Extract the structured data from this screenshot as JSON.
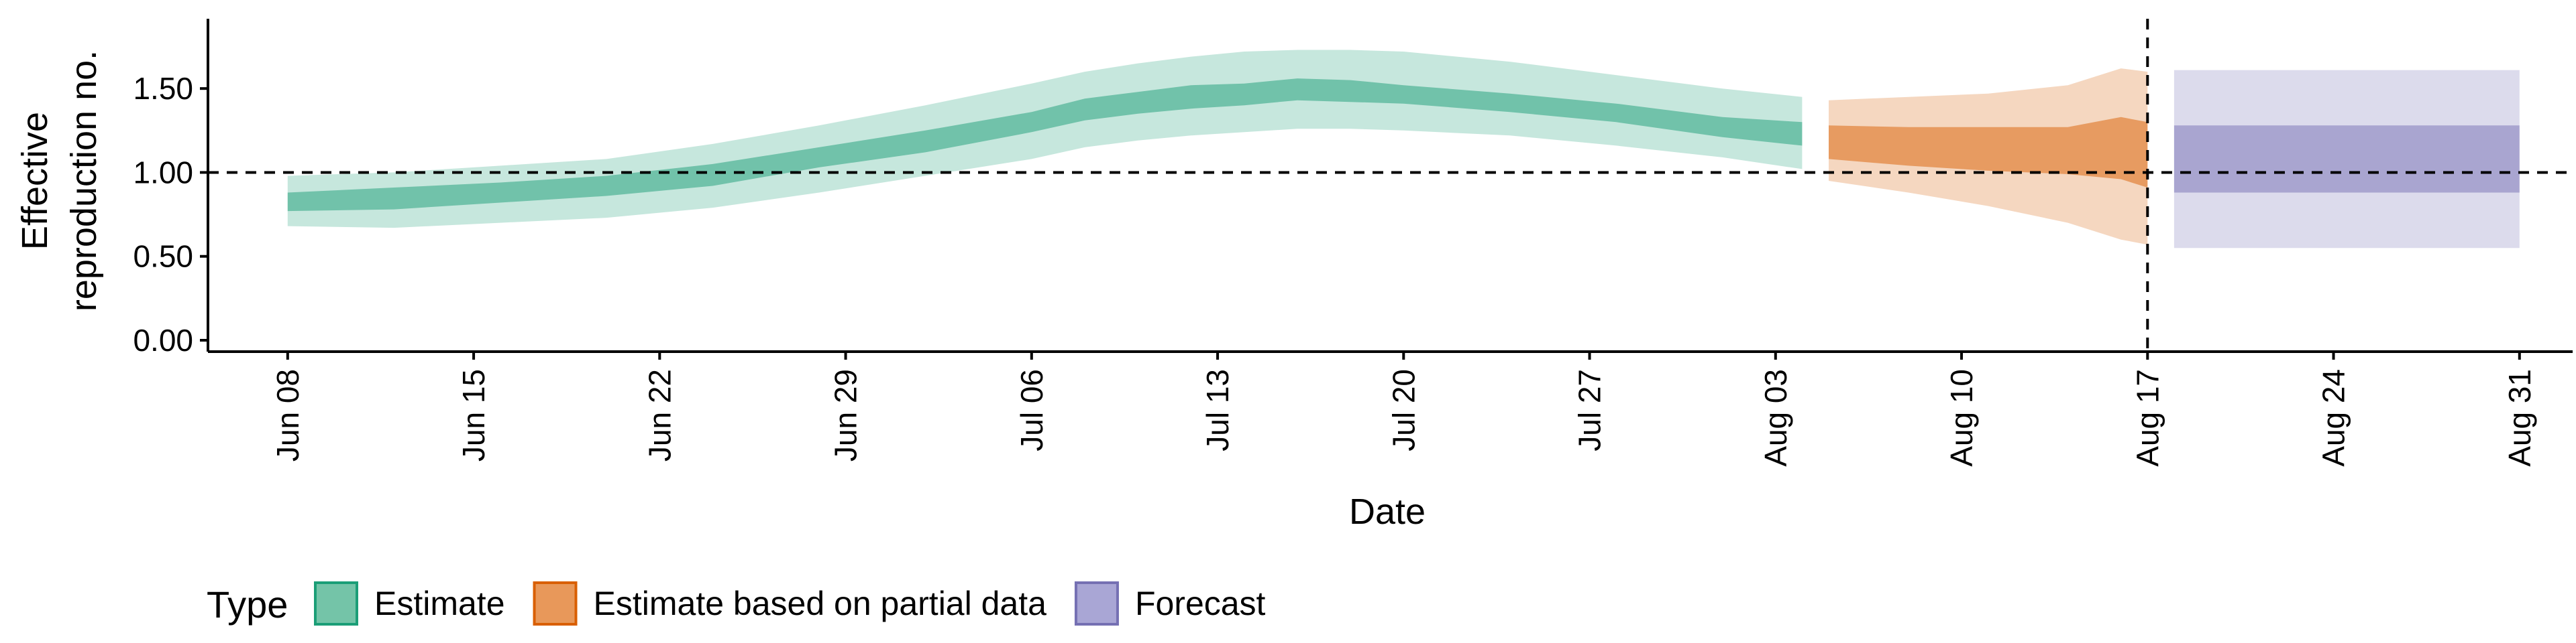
{
  "chart_data": {
    "type": "area",
    "ylabel_line1": "Effective",
    "ylabel_line2": "reproduction no.",
    "xlabel": "Date",
    "ylim": [
      0,
      1.8
    ],
    "yticks": [
      0.0,
      0.5,
      1.0,
      1.5
    ],
    "ytick_labels": [
      "0.00",
      "0.50",
      "1.00",
      "1.50"
    ],
    "xlim": [
      "2020-06-05",
      "2020-09-02"
    ],
    "xticks": [
      "2020-06-08",
      "2020-06-15",
      "2020-06-22",
      "2020-06-29",
      "2020-07-06",
      "2020-07-13",
      "2020-07-20",
      "2020-07-27",
      "2020-08-03",
      "2020-08-10",
      "2020-08-17",
      "2020-08-24",
      "2020-08-31"
    ],
    "xtick_labels": [
      "Jun 08",
      "Jun 15",
      "Jun 22",
      "Jun 29",
      "Jul 06",
      "Jul 13",
      "Jul 20",
      "Jul 27",
      "Aug 03",
      "Aug 10",
      "Aug 17",
      "Aug 24",
      "Aug 31"
    ],
    "hline": 1.0,
    "vline": "2020-08-17",
    "grid": false,
    "legend_position": "bottom",
    "series": [
      {
        "name": "Estimate",
        "color": "#1b9e77",
        "x": [
          "2020-06-08",
          "2020-06-12",
          "2020-06-16",
          "2020-06-20",
          "2020-06-24",
          "2020-06-28",
          "2020-07-02",
          "2020-07-06",
          "2020-07-08",
          "2020-07-10",
          "2020-07-12",
          "2020-07-14",
          "2020-07-16",
          "2020-07-18",
          "2020-07-20",
          "2020-07-24",
          "2020-07-28",
          "2020-08-01",
          "2020-08-04"
        ],
        "outer_lower": [
          0.68,
          0.67,
          0.7,
          0.73,
          0.79,
          0.88,
          0.98,
          1.08,
          1.15,
          1.19,
          1.22,
          1.24,
          1.26,
          1.26,
          1.25,
          1.22,
          1.16,
          1.09,
          1.02
        ],
        "outer_upper": [
          0.98,
          1.0,
          1.04,
          1.08,
          1.17,
          1.28,
          1.4,
          1.53,
          1.6,
          1.65,
          1.69,
          1.72,
          1.73,
          1.73,
          1.72,
          1.66,
          1.58,
          1.5,
          1.45
        ],
        "inner_lower": [
          0.77,
          0.78,
          0.82,
          0.86,
          0.92,
          1.03,
          1.12,
          1.24,
          1.31,
          1.35,
          1.38,
          1.4,
          1.43,
          1.42,
          1.41,
          1.36,
          1.3,
          1.21,
          1.16
        ],
        "inner_upper": [
          0.88,
          0.91,
          0.94,
          0.98,
          1.05,
          1.15,
          1.25,
          1.36,
          1.44,
          1.48,
          1.52,
          1.53,
          1.56,
          1.55,
          1.52,
          1.47,
          1.41,
          1.33,
          1.3
        ]
      },
      {
        "name": "Estimate based on partial data",
        "color": "#d95f02",
        "x": [
          "2020-08-05",
          "2020-08-08",
          "2020-08-11",
          "2020-08-14",
          "2020-08-16",
          "2020-08-17"
        ],
        "outer_lower": [
          0.95,
          0.88,
          0.8,
          0.7,
          0.6,
          0.57
        ],
        "outer_upper": [
          1.43,
          1.45,
          1.47,
          1.52,
          1.62,
          1.6
        ],
        "inner_lower": [
          1.08,
          1.04,
          1.01,
          0.99,
          0.96,
          0.91
        ],
        "inner_upper": [
          1.28,
          1.27,
          1.27,
          1.27,
          1.33,
          1.3
        ]
      },
      {
        "name": "Forecast",
        "color": "#7570b3",
        "x": [
          "2020-08-18",
          "2020-08-31"
        ],
        "outer_lower": [
          0.55,
          0.55
        ],
        "outer_upper": [
          1.61,
          1.61
        ],
        "inner_lower": [
          0.88,
          0.88
        ],
        "inner_upper": [
          1.28,
          1.28
        ]
      }
    ],
    "legend": {
      "title": "Type",
      "items": [
        {
          "label": "Estimate",
          "fill": "#74c4a8",
          "stroke": "#1b9e77"
        },
        {
          "label": "Estimate based on partial data",
          "fill": "#e8985a",
          "stroke": "#d95f02"
        },
        {
          "label": "Forecast",
          "fill": "#a9a6d5",
          "stroke": "#7570b3"
        }
      ]
    }
  }
}
